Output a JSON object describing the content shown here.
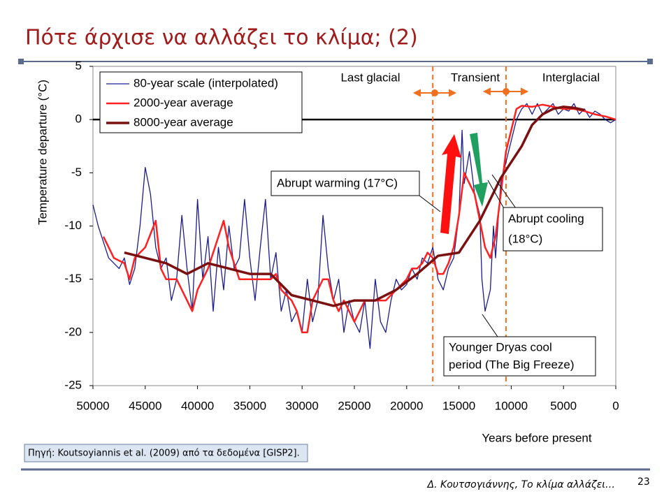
{
  "slide": {
    "title": "Πότε άρχισε να αλλάζει το κλίμα; (2)",
    "source": "Πηγή: Koutsoyiannis et al. (2009) από τα δεδομένα [GISP2].",
    "footer": "Δ. Κουτσογιάννης, Το κλίμα αλλάζει…",
    "page": "23"
  },
  "chart_data": {
    "type": "line",
    "ylabel": "Temperature departure (°C)",
    "xlabel": "Years before present",
    "xlim": [
      50000,
      0
    ],
    "xticks": [
      50000,
      45000,
      40000,
      35000,
      30000,
      25000,
      20000,
      15000,
      10000,
      5000,
      0
    ],
    "ylim": [
      -25,
      5
    ],
    "yticks": [
      -25,
      -20,
      -15,
      -10,
      -5,
      0,
      5
    ],
    "hlines": [
      0
    ],
    "vlines": [
      17500,
      10500
    ],
    "annotations": [
      "Last glacial",
      "Transient",
      "Interglacial",
      "Abrupt warming (17°C)",
      "Abrupt cooling",
      "(18°C)",
      "Younger Dryas cool",
      "period (The Big Freeze)"
    ],
    "series": [
      {
        "name": "80-year scale (interpolated)",
        "color": "#1c1c8c",
        "width": 1.3,
        "x": [
          50000,
          49500,
          49000,
          48500,
          48000,
          47500,
          47000,
          46500,
          46000,
          45500,
          45000,
          44500,
          44000,
          43500,
          43000,
          42500,
          42000,
          41500,
          41000,
          40500,
          40000,
          39500,
          39000,
          38500,
          38000,
          37500,
          37000,
          36500,
          36000,
          35500,
          35000,
          34500,
          34000,
          33500,
          33000,
          32500,
          32000,
          31500,
          31000,
          30500,
          30000,
          29500,
          29000,
          28500,
          28000,
          27500,
          27000,
          26500,
          26000,
          25500,
          25000,
          24500,
          24000,
          23500,
          23000,
          22500,
          22000,
          21500,
          21000,
          20500,
          20000,
          19500,
          19000,
          18500,
          18000,
          17500,
          17000,
          16500,
          16000,
          15500,
          15000,
          14700,
          14500,
          14000,
          13500,
          13000,
          12800,
          12500,
          12000,
          11700,
          11500,
          11000,
          10500,
          10000,
          9500,
          9000,
          8500,
          8000,
          7500,
          7000,
          6500,
          6000,
          5500,
          5000,
          4500,
          4000,
          3500,
          3000,
          2500,
          2000,
          1500,
          1000,
          500,
          0
        ],
        "values": [
          -8,
          -10,
          -11.5,
          -13,
          -13.5,
          -14,
          -13,
          -15.5,
          -14,
          -10,
          -4.5,
          -7,
          -12,
          -14,
          -13,
          -17,
          -15,
          -9,
          -14,
          -18,
          -7.5,
          -15,
          -11,
          -18,
          -12,
          -16,
          -10,
          -14,
          -13,
          -7.5,
          -13,
          -17,
          -12,
          -7.5,
          -15,
          -12.5,
          -18,
          -16,
          -19,
          -18,
          -20,
          -15,
          -19,
          -17,
          -9,
          -14,
          -17,
          -15,
          -20,
          -17,
          -19,
          -20,
          -17,
          -21.5,
          -15,
          -19,
          -20,
          -17,
          -15,
          -16,
          -15.5,
          -14,
          -15,
          -13,
          -13.5,
          -12,
          -15,
          -16,
          -14,
          -13,
          -9,
          -1,
          -6,
          -3,
          -7,
          -9,
          -15,
          -18,
          -16,
          -10,
          -13,
          -6,
          -4,
          -2,
          0,
          1,
          1.5,
          0.5,
          1.5,
          0.5,
          1,
          1.5,
          0.5,
          1,
          0.8,
          1.5,
          0.5,
          1,
          0.2,
          0.8,
          0.5,
          0,
          -0.3,
          0
        ]
      },
      {
        "name": "2000-year average",
        "color": "#ff2020",
        "width": 2.5,
        "x": [
          49000,
          48000,
          47000,
          46500,
          46000,
          45000,
          44000,
          43500,
          43000,
          42000,
          41000,
          40500,
          40000,
          39000,
          38000,
          37500,
          37000,
          36000,
          35000,
          34000,
          33000,
          32500,
          32000,
          31000,
          30500,
          30000,
          29500,
          29000,
          28500,
          28000,
          27500,
          27000,
          26500,
          26000,
          25500,
          25000,
          24500,
          24000,
          23000,
          22000,
          21000,
          20000,
          19500,
          19000,
          18500,
          18000,
          17500,
          17000,
          16500,
          16000,
          15500,
          15000,
          14500,
          14000,
          13500,
          13000,
          12500,
          12000,
          11500,
          11000,
          10500,
          10000,
          9500,
          9000,
          8000,
          7000,
          6000,
          5000,
          4000,
          3000,
          2000,
          1000,
          0
        ],
        "values": [
          -11,
          -13,
          -13.5,
          -15,
          -13,
          -12,
          -9.5,
          -14,
          -15,
          -15,
          -17,
          -18,
          -16,
          -14,
          -11,
          -9.5,
          -12,
          -15,
          -15,
          -15,
          -15,
          -14.5,
          -16,
          -17,
          -18,
          -20,
          -20,
          -17,
          -16,
          -15,
          -15,
          -17,
          -18,
          -17,
          -18,
          -19,
          -18,
          -17,
          -17,
          -17,
          -16,
          -15,
          -14,
          -14,
          -13.5,
          -12.5,
          -13,
          -14.5,
          -14.5,
          -13.5,
          -12,
          -9,
          -5,
          -6,
          -7,
          -9.5,
          -12,
          -13,
          -11,
          -7,
          -3,
          -1,
          1,
          1.3,
          1.2,
          1.4,
          1.2,
          1,
          1,
          0.8,
          0.5,
          0.3,
          0
        ]
      },
      {
        "name": "8000-year average",
        "color": "#7a1010",
        "width": 3.5,
        "x": [
          47000,
          45000,
          43000,
          41000,
          39000,
          37000,
          35000,
          33000,
          31000,
          29000,
          27000,
          25000,
          23000,
          21000,
          19000,
          17000,
          15000,
          13000,
          11000,
          10000,
          9000,
          8000,
          7000,
          6000,
          5000,
          4000,
          3000
        ],
        "values": [
          -12.5,
          -13,
          -13.5,
          -14.5,
          -13.5,
          -14,
          -14.5,
          -14.5,
          -16.5,
          -17,
          -17.5,
          -17,
          -17,
          -16,
          -14.5,
          -12.8,
          -12.5,
          -9.5,
          -5.5,
          -4,
          -2.5,
          -0.5,
          0.5,
          1,
          1.2,
          1.1,
          0.9
        ]
      }
    ]
  }
}
